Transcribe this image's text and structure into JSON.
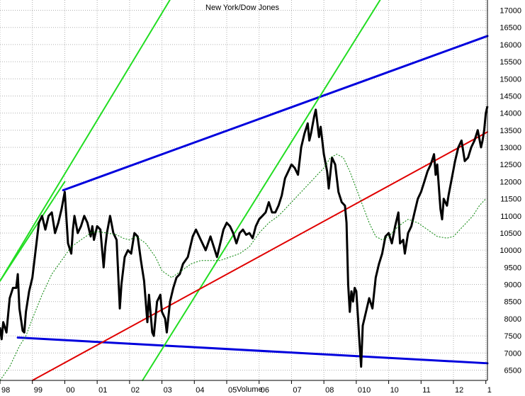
{
  "chart_data": {
    "type": "line",
    "title": "New York/Dow Jones",
    "bottom_label": "Volume",
    "ylim": [
      6200,
      17300
    ],
    "xlim": [
      1998.0,
      2013.05
    ],
    "grid": true,
    "y_ticks": [
      6500,
      7000,
      7500,
      8000,
      8500,
      9000,
      9500,
      10000,
      10500,
      11000,
      11500,
      12000,
      12500,
      13000,
      13500,
      14000,
      14500,
      15000,
      15500,
      16000,
      16500,
      17000
    ],
    "x_ticks": [
      {
        "label": "98",
        "x": 1998.0
      },
      {
        "label": "99",
        "x": 1999.0
      },
      {
        "label": "00",
        "x": 2000.0
      },
      {
        "label": "01",
        "x": 2001.0
      },
      {
        "label": "02",
        "x": 2002.0
      },
      {
        "label": "03",
        "x": 2003.0
      },
      {
        "label": "04",
        "x": 2004.0
      },
      {
        "label": "05",
        "x": 2005.0
      },
      {
        "label": "06",
        "x": 2006.0
      },
      {
        "label": "07",
        "x": 2007.0
      },
      {
        "label": "08",
        "x": 2008.0
      },
      {
        "label": "010",
        "x": 2009.0
      },
      {
        "label": "10",
        "x": 2010.0
      },
      {
        "label": "11",
        "x": 2011.0
      },
      {
        "label": "12",
        "x": 2012.0
      },
      {
        "label": "1",
        "x": 2013.0
      }
    ],
    "colors": {
      "price": "#000000",
      "moving_average": "#008000",
      "resistance": "#0000dd",
      "support": "#0000dd",
      "green_channel": "#22dd22",
      "red_trend": "#e00000",
      "grid": "#b0b0b0"
    },
    "series": [
      {
        "kind": "price",
        "points": [
          [
            1998.0,
            7750
          ],
          [
            1998.05,
            7400
          ],
          [
            1998.1,
            7900
          ],
          [
            1998.2,
            7600
          ],
          [
            1998.3,
            8600
          ],
          [
            1998.4,
            8900
          ],
          [
            1998.5,
            8900
          ],
          [
            1998.55,
            9300
          ],
          [
            1998.6,
            8300
          ],
          [
            1998.7,
            7650
          ],
          [
            1998.75,
            7600
          ],
          [
            1998.8,
            8200
          ],
          [
            1998.9,
            8800
          ],
          [
            1999.0,
            9200
          ],
          [
            1999.1,
            10000
          ],
          [
            1999.2,
            10800
          ],
          [
            1999.3,
            11000
          ],
          [
            1999.4,
            10600
          ],
          [
            1999.5,
            11000
          ],
          [
            1999.6,
            11100
          ],
          [
            1999.7,
            10500
          ],
          [
            1999.8,
            10800
          ],
          [
            1999.9,
            11200
          ],
          [
            2000.0,
            11700
          ],
          [
            2000.1,
            10200
          ],
          [
            2000.2,
            9900
          ],
          [
            2000.25,
            10600
          ],
          [
            2000.3,
            11000
          ],
          [
            2000.4,
            10500
          ],
          [
            2000.5,
            10700
          ],
          [
            2000.6,
            11000
          ],
          [
            2000.7,
            10800
          ],
          [
            2000.8,
            10400
          ],
          [
            2000.85,
            10700
          ],
          [
            2000.9,
            10300
          ],
          [
            2001.0,
            10700
          ],
          [
            2001.1,
            10600
          ],
          [
            2001.2,
            9500
          ],
          [
            2001.25,
            10100
          ],
          [
            2001.3,
            10500
          ],
          [
            2001.4,
            11000
          ],
          [
            2001.5,
            10500
          ],
          [
            2001.6,
            10300
          ],
          [
            2001.7,
            8300
          ],
          [
            2001.75,
            9000
          ],
          [
            2001.85,
            9800
          ],
          [
            2001.95,
            10000
          ],
          [
            2002.05,
            9900
          ],
          [
            2002.15,
            10500
          ],
          [
            2002.25,
            10400
          ],
          [
            2002.35,
            9700
          ],
          [
            2002.45,
            9100
          ],
          [
            2002.55,
            7900
          ],
          [
            2002.6,
            8700
          ],
          [
            2002.7,
            7600
          ],
          [
            2002.75,
            7500
          ],
          [
            2002.85,
            8500
          ],
          [
            2002.95,
            8700
          ],
          [
            2003.0,
            8200
          ],
          [
            2003.1,
            8000
          ],
          [
            2003.15,
            7600
          ],
          [
            2003.25,
            8500
          ],
          [
            2003.35,
            8900
          ],
          [
            2003.45,
            9200
          ],
          [
            2003.55,
            9300
          ],
          [
            2003.65,
            9600
          ],
          [
            2003.8,
            9800
          ],
          [
            2003.95,
            10400
          ],
          [
            2004.05,
            10600
          ],
          [
            2004.2,
            10300
          ],
          [
            2004.35,
            10000
          ],
          [
            2004.5,
            10400
          ],
          [
            2004.6,
            10100
          ],
          [
            2004.7,
            9800
          ],
          [
            2004.8,
            10200
          ],
          [
            2004.9,
            10600
          ],
          [
            2005.0,
            10800
          ],
          [
            2005.1,
            10700
          ],
          [
            2005.2,
            10500
          ],
          [
            2005.3,
            10200
          ],
          [
            2005.4,
            10500
          ],
          [
            2005.5,
            10600
          ],
          [
            2005.6,
            10450
          ],
          [
            2005.7,
            10500
          ],
          [
            2005.8,
            10350
          ],
          [
            2005.9,
            10700
          ],
          [
            2006.0,
            10900
          ],
          [
            2006.1,
            11000
          ],
          [
            2006.2,
            11100
          ],
          [
            2006.3,
            11400
          ],
          [
            2006.4,
            11100
          ],
          [
            2006.5,
            11100
          ],
          [
            2006.6,
            11300
          ],
          [
            2006.7,
            11600
          ],
          [
            2006.8,
            12100
          ],
          [
            2006.9,
            12300
          ],
          [
            2007.0,
            12500
          ],
          [
            2007.1,
            12400
          ],
          [
            2007.2,
            12200
          ],
          [
            2007.3,
            13000
          ],
          [
            2007.4,
            13400
          ],
          [
            2007.5,
            13700
          ],
          [
            2007.55,
            13200
          ],
          [
            2007.6,
            13400
          ],
          [
            2007.7,
            13900
          ],
          [
            2007.75,
            14100
          ],
          [
            2007.85,
            13300
          ],
          [
            2007.9,
            13600
          ],
          [
            2008.0,
            12800
          ],
          [
            2008.1,
            12300
          ],
          [
            2008.15,
            11800
          ],
          [
            2008.25,
            12700
          ],
          [
            2008.35,
            12500
          ],
          [
            2008.45,
            11700
          ],
          [
            2008.55,
            11400
          ],
          [
            2008.65,
            11300
          ],
          [
            2008.7,
            10800
          ],
          [
            2008.75,
            9000
          ],
          [
            2008.8,
            8200
          ],
          [
            2008.85,
            8800
          ],
          [
            2008.9,
            8500
          ],
          [
            2008.95,
            8900
          ],
          [
            2009.0,
            8800
          ],
          [
            2009.05,
            8100
          ],
          [
            2009.1,
            7300
          ],
          [
            2009.15,
            6600
          ],
          [
            2009.2,
            7800
          ],
          [
            2009.3,
            8200
          ],
          [
            2009.4,
            8600
          ],
          [
            2009.5,
            8300
          ],
          [
            2009.6,
            9200
          ],
          [
            2009.7,
            9600
          ],
          [
            2009.8,
            9900
          ],
          [
            2009.9,
            10400
          ],
          [
            2010.0,
            10500
          ],
          [
            2010.1,
            10200
          ],
          [
            2010.2,
            10700
          ],
          [
            2010.3,
            11100
          ],
          [
            2010.35,
            10200
          ],
          [
            2010.45,
            10300
          ],
          [
            2010.5,
            9900
          ],
          [
            2010.6,
            10500
          ],
          [
            2010.7,
            10700
          ],
          [
            2010.8,
            11100
          ],
          [
            2010.9,
            11500
          ],
          [
            2011.0,
            11700
          ],
          [
            2011.1,
            12000
          ],
          [
            2011.2,
            12300
          ],
          [
            2011.3,
            12500
          ],
          [
            2011.4,
            12800
          ],
          [
            2011.45,
            12200
          ],
          [
            2011.5,
            12500
          ],
          [
            2011.6,
            11200
          ],
          [
            2011.65,
            10900
          ],
          [
            2011.7,
            11500
          ],
          [
            2011.8,
            11300
          ],
          [
            2011.85,
            11600
          ],
          [
            2011.95,
            12100
          ],
          [
            2012.05,
            12600
          ],
          [
            2012.15,
            13000
          ],
          [
            2012.25,
            13200
          ],
          [
            2012.35,
            12600
          ],
          [
            2012.45,
            12700
          ],
          [
            2012.55,
            13000
          ],
          [
            2012.65,
            13200
          ],
          [
            2012.75,
            13500
          ],
          [
            2012.85,
            13000
          ],
          [
            2012.9,
            13200
          ],
          [
            2012.95,
            13500
          ],
          [
            2013.0,
            14000
          ],
          [
            2013.05,
            14200
          ]
        ]
      },
      {
        "kind": "moving_average",
        "points": [
          [
            1998.0,
            6200
          ],
          [
            1998.3,
            6600
          ],
          [
            1998.6,
            7200
          ],
          [
            1998.8,
            7500
          ],
          [
            1999.0,
            8000
          ],
          [
            1999.3,
            8700
          ],
          [
            1999.6,
            9300
          ],
          [
            1999.9,
            9700
          ],
          [
            2000.2,
            10100
          ],
          [
            2000.5,
            10300
          ],
          [
            2000.8,
            10500
          ],
          [
            2001.0,
            10550
          ],
          [
            2001.3,
            10500
          ],
          [
            2001.6,
            10450
          ],
          [
            2001.8,
            10350
          ],
          [
            2002.0,
            10300
          ],
          [
            2002.2,
            10400
          ],
          [
            2002.5,
            10200
          ],
          [
            2002.8,
            9800
          ],
          [
            2003.0,
            9400
          ],
          [
            2003.3,
            9200
          ],
          [
            2003.6,
            9400
          ],
          [
            2003.9,
            9600
          ],
          [
            2004.2,
            9700
          ],
          [
            2004.5,
            9700
          ],
          [
            2004.8,
            9700
          ],
          [
            2005.1,
            9800
          ],
          [
            2005.4,
            9900
          ],
          [
            2005.7,
            10100
          ],
          [
            2006.0,
            10500
          ],
          [
            2006.3,
            10800
          ],
          [
            2006.6,
            11000
          ],
          [
            2006.9,
            11300
          ],
          [
            2007.2,
            11600
          ],
          [
            2007.5,
            11900
          ],
          [
            2007.8,
            12200
          ],
          [
            2008.0,
            12400
          ],
          [
            2008.2,
            12700
          ],
          [
            2008.4,
            12800
          ],
          [
            2008.6,
            12700
          ],
          [
            2008.8,
            12300
          ],
          [
            2009.0,
            11800
          ],
          [
            2009.2,
            11300
          ],
          [
            2009.4,
            10800
          ],
          [
            2009.6,
            10400
          ],
          [
            2009.8,
            10300
          ],
          [
            2010.0,
            10400
          ],
          [
            2010.3,
            10700
          ],
          [
            2010.6,
            10900
          ],
          [
            2010.9,
            10800
          ],
          [
            2011.2,
            10600
          ],
          [
            2011.5,
            10400
          ],
          [
            2011.8,
            10350
          ],
          [
            2012.0,
            10400
          ],
          [
            2012.3,
            10700
          ],
          [
            2012.6,
            11000
          ],
          [
            2012.8,
            11300
          ],
          [
            2013.0,
            11500
          ]
        ]
      }
    ],
    "trendlines": [
      {
        "kind": "resistance",
        "from": [
          1999.95,
          11750
        ],
        "to": [
          2013.05,
          16250
        ]
      },
      {
        "kind": "support",
        "from": [
          1998.55,
          7450
        ],
        "to": [
          2013.05,
          6700
        ]
      },
      {
        "kind": "green_channel",
        "from": [
          1998.0,
          9100
        ],
        "to": [
          2000.0,
          12000
        ]
      },
      {
        "kind": "green_channel",
        "from": [
          1998.0,
          9100
        ],
        "to": [
          2003.5,
          17700
        ]
      },
      {
        "kind": "green_channel",
        "from": [
          2002.4,
          6200
        ],
        "to": [
          2010.0,
          17700
        ]
      },
      {
        "kind": "red_trend",
        "from": [
          1999.0,
          6200
        ],
        "to": [
          2013.05,
          13450
        ]
      }
    ]
  }
}
